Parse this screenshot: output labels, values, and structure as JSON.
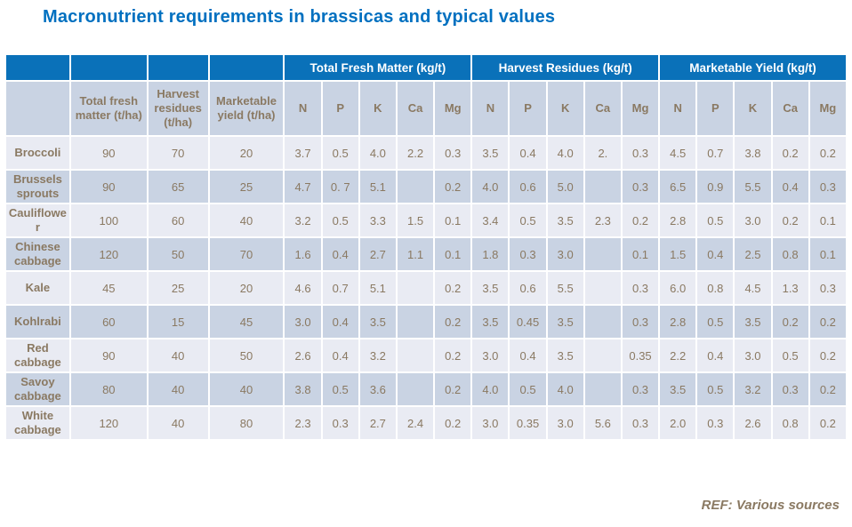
{
  "title": "Macronutrient requirements in brassicas and typical values",
  "footer": {
    "ref": "REF: Various sources"
  },
  "colors": {
    "title_blue": "#0070c0",
    "header_blue": "#0a71b9",
    "row_light": "#e9ebf3",
    "row_dark": "#c9d3e3",
    "text_brown": "#8a7962"
  },
  "chart_data": {
    "type": "table",
    "title": "Macronutrient requirements in brassicas and typical values",
    "group_headers": [
      {
        "label": "",
        "span": 1
      },
      {
        "label": "",
        "span": 1
      },
      {
        "label": "",
        "span": 1
      },
      {
        "label": "",
        "span": 1
      },
      {
        "label": "Total Fresh Matter (kg/t)",
        "span": 5
      },
      {
        "label": "Harvest Residues (kg/t)",
        "span": 5
      },
      {
        "label": "Marketable Yield (kg/t)",
        "span": 5
      }
    ],
    "sub_headers": [
      "",
      "Total fresh matter (t/ha)",
      "Harvest residues (t/ha)",
      "Marketable yield (t/ha)",
      "N",
      "P",
      "K",
      "Ca",
      "Mg",
      "N",
      "P",
      "K",
      "Ca",
      "Mg",
      "N",
      "P",
      "K",
      "Ca",
      "Mg"
    ],
    "rows": [
      {
        "label": "Broccoli",
        "values": [
          "90",
          "70",
          "20",
          "3.7",
          "0.5",
          "4.0",
          "2.2",
          "0.3",
          "3.5",
          "0.4",
          "4.0",
          "2.",
          "0.3",
          "4.5",
          "0.7",
          "3.8",
          "0.2",
          "0.2"
        ]
      },
      {
        "label": "Brussels sprouts",
        "values": [
          "90",
          "65",
          "25",
          "4.7",
          "0. 7",
          "5.1",
          "",
          "0.2",
          "4.0",
          "0.6",
          "5.0",
          "",
          "0.3",
          "6.5",
          "0.9",
          "5.5",
          "0.4",
          "0.3"
        ]
      },
      {
        "label": "Cauliflower",
        "values": [
          "100",
          "60",
          "40",
          "3.2",
          "0.5",
          "3.3",
          "1.5",
          "0.1",
          "3.4",
          "0.5",
          "3.5",
          "2.3",
          "0.2",
          "2.8",
          "0.5",
          "3.0",
          "0.2",
          "0.1"
        ]
      },
      {
        "label": "Chinese cabbage",
        "values": [
          "120",
          "50",
          "70",
          "1.6",
          "0.4",
          "2.7",
          "1.1",
          "0.1",
          "1.8",
          "0.3",
          "3.0",
          "",
          "0.1",
          "1.5",
          "0.4",
          "2.5",
          "0.8",
          "0.1"
        ]
      },
      {
        "label": "Kale",
        "values": [
          "45",
          "25",
          "20",
          "4.6",
          "0.7",
          "5.1",
          "",
          "0.2",
          "3.5",
          "0.6",
          "5.5",
          "",
          "0.3",
          "6.0",
          "0.8",
          "4.5",
          "1.3",
          "0.3"
        ]
      },
      {
        "label": "Kohlrabi",
        "values": [
          "60",
          "15",
          "45",
          "3.0",
          "0.4",
          "3.5",
          "",
          "0.2",
          "3.5",
          "0.45",
          "3.5",
          "",
          "0.3",
          "2.8",
          "0.5",
          "3.5",
          "0.2",
          "0.2"
        ]
      },
      {
        "label": "Red cabbage",
        "values": [
          "90",
          "40",
          "50",
          "2.6",
          "0.4",
          "3.2",
          "",
          "0.2",
          "3.0",
          "0.4",
          "3.5",
          "",
          "0.35",
          "2.2",
          "0.4",
          "3.0",
          "0.5",
          "0.2"
        ]
      },
      {
        "label": "Savoy cabbage",
        "values": [
          "80",
          "40",
          "40",
          "3.8",
          "0.5",
          "3.6",
          "",
          "0.2",
          "4.0",
          "0.5",
          "4.0",
          "",
          "0.3",
          "3.5",
          "0.5",
          "3.2",
          "0.3",
          "0.2"
        ]
      },
      {
        "label": "White cabbage",
        "values": [
          "120",
          "40",
          "80",
          "2.3",
          "0.3",
          "2.7",
          "2.4",
          "0.2",
          "3.0",
          "0.35",
          "3.0",
          "5.6",
          "0.3",
          "2.0",
          "0.3",
          "2.6",
          "0.8",
          "0.2"
        ]
      }
    ]
  }
}
